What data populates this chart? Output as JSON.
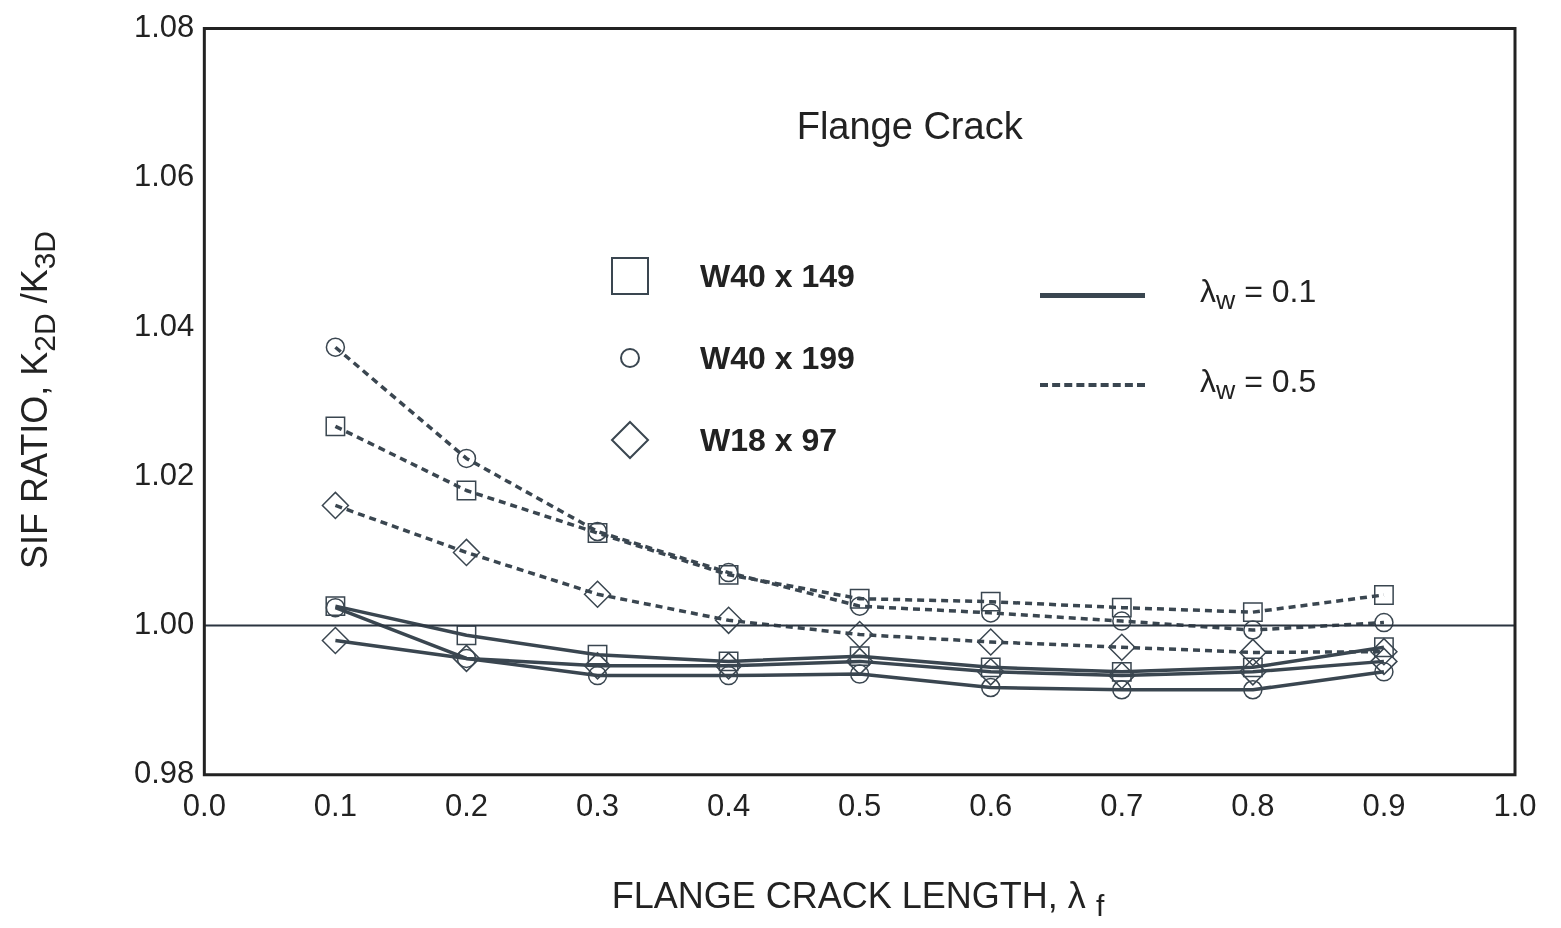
{
  "chart_data": {
    "type": "line",
    "title": "Flange Crack",
    "xlabel": "FLANGE CRACK LENGTH, λ $_{f}$",
    "ylabel": "SIF RATIO, K$_{2D}$ /K$_{3D}$",
    "x": [
      0.1,
      0.2,
      0.3,
      0.4,
      0.5,
      0.6,
      0.7,
      0.8,
      0.9
    ],
    "xlim": [
      0,
      1
    ],
    "xticks": [
      {
        "value": 0,
        "label": "0.0"
      },
      {
        "value": 0.1,
        "label": "0.1"
      },
      {
        "value": 0.2,
        "label": "0.2"
      },
      {
        "value": 0.3,
        "label": "0.3"
      },
      {
        "value": 0.4,
        "label": "0.4"
      },
      {
        "value": 0.5,
        "label": "0.5"
      },
      {
        "value": 0.6,
        "label": "0.6"
      },
      {
        "value": 0.7,
        "label": "0.7"
      },
      {
        "value": 0.8,
        "label": "0.8"
      },
      {
        "value": 0.9,
        "label": "0.9"
      },
      {
        "value": 1,
        "label": "1.0"
      }
    ],
    "ylim": [
      0.98,
      1.08
    ],
    "yticks": [
      0.98,
      {
        "value": 1,
        "label": "1.00"
      },
      1.02,
      1.04,
      1.06,
      1.08
    ],
    "grid": false,
    "legend": "top",
    "annotations": [
      "λ$_{w}$ = 0.1",
      "λ$_{w}$ = 0.5"
    ],
    "ref_lines": [
      {
        "axis": "y",
        "value": 1,
        "color": "#2b3540",
        "line_style": "solid"
      }
    ],
    "series": [
      {
        "name": "W40 x 149",
        "color": "#3a4650",
        "marker": "square",
        "line_style": "solid",
        "values": [
          1.0026,
          0.9987,
          0.9961,
          0.9952,
          0.9959,
          0.9944,
          0.9938,
          0.9944,
          0.9971
        ]
      },
      {
        "name": "W40 x 199",
        "color": "#3a4650",
        "marker": "circle",
        "line_style": "solid",
        "values": [
          1.0024,
          0.9956,
          0.9933,
          0.9933,
          0.9935,
          0.9917,
          0.9914,
          0.9914,
          0.9938
        ]
      },
      {
        "name": "W18 x 97",
        "color": "#3a4650",
        "marker": "diamond",
        "line_style": "solid",
        "values": [
          0.998,
          0.9956,
          0.9946,
          0.9946,
          0.9952,
          0.9938,
          0.9933,
          0.9938,
          0.9952
        ]
      },
      {
        "color": "#3a4650",
        "marker": "square",
        "line_style": "dashed",
        "values": [
          1.0267,
          1.0181,
          1.0124,
          1.0068,
          1.0036,
          1.0032,
          1.0024,
          1.0018,
          1.0041
        ]
      },
      {
        "color": "#3a4650",
        "marker": "circle",
        "line_style": "dashed",
        "values": [
          1.0373,
          1.0224,
          1.0126,
          1.0071,
          1.0026,
          1.0017,
          1.0006,
          0.9994,
          1.0004
        ]
      },
      {
        "color": "#3a4650",
        "marker": "diamond",
        "line_style": "dashed",
        "values": [
          1.0161,
          1.0098,
          1.0042,
          1.0007,
          0.9988,
          0.9978,
          0.9971,
          0.9964,
          0.9965
        ]
      }
    ]
  }
}
